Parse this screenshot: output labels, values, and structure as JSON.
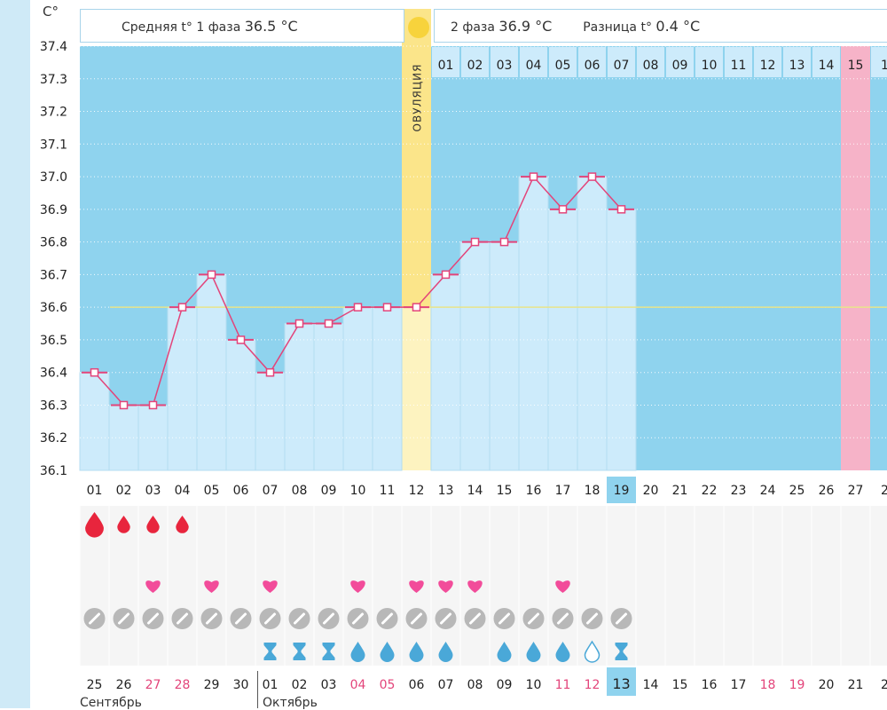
{
  "header": {
    "unit": "C°",
    "phase1_label": "Средняя t° 1 фаза",
    "phase1_value": "36.5 °C",
    "phase2_label": "2 фаза",
    "phase2_value": "36.9 °C",
    "diff_label": "Разница t°",
    "diff_value": "0.4 °C",
    "ovulation_label": "ОВУЛЯЦИЯ"
  },
  "colors": {
    "background_blue": "#8fd3ee",
    "bar_fill": "#cdebfb",
    "ovulation": "#fbe58a",
    "ovulation_light": "#fdf3c0",
    "period_pink": "#f6b3c8",
    "line": "#e3447a",
    "coverline": "#e8e48a",
    "today": "#8fd3ee",
    "red_text": "#e3447a"
  },
  "chart_data": {
    "type": "line",
    "title": "",
    "ylabel": "C°",
    "ylim": [
      36.1,
      37.4
    ],
    "y_ticks": [
      "37.4",
      "37.3",
      "37.2",
      "37.1",
      "37.0",
      "36.9",
      "36.8",
      "36.7",
      "36.6",
      "36.5",
      "36.4",
      "36.3",
      "36.2",
      "36.1"
    ],
    "coverline": 36.6,
    "ovulation_day": 12,
    "today_day": 19,
    "cycle_days": [
      "01",
      "02",
      "03",
      "04",
      "05",
      "06",
      "07",
      "08",
      "09",
      "10",
      "11",
      "12",
      "13",
      "14",
      "15",
      "16",
      "17",
      "18",
      "19",
      "20",
      "21",
      "22",
      "23",
      "24",
      "25",
      "26",
      "27",
      "2"
    ],
    "phase2_days": [
      "01",
      "02",
      "03",
      "04",
      "05",
      "06",
      "07",
      "08",
      "09",
      "10",
      "11",
      "12",
      "13",
      "14",
      "15",
      "1"
    ],
    "temperatures": [
      36.4,
      36.3,
      36.3,
      36.6,
      36.7,
      36.5,
      36.4,
      36.55,
      36.55,
      36.6,
      36.6,
      36.6,
      36.7,
      36.8,
      36.8,
      37.0,
      36.9,
      37.0,
      36.9
    ],
    "menstruation": [
      3,
      2,
      2,
      2,
      0,
      0,
      0,
      0,
      0,
      0,
      0,
      0,
      0,
      0,
      0,
      0,
      0,
      0,
      0
    ],
    "hearts": [
      0,
      0,
      1,
      0,
      1,
      0,
      1,
      0,
      0,
      1,
      0,
      1,
      1,
      1,
      0,
      0,
      1,
      0,
      0
    ],
    "tests": 19,
    "mucus": [
      "",
      "",
      "",
      "",
      "",
      "",
      "hourglass",
      "hourglass",
      "hourglass",
      "drop",
      "drop",
      "drop",
      "drop",
      "",
      "drop",
      "drop",
      "drop",
      "drop-empty",
      "hourglass"
    ],
    "calendar_dates": [
      {
        "d": "25",
        "red": false
      },
      {
        "d": "26",
        "red": false
      },
      {
        "d": "27",
        "red": true
      },
      {
        "d": "28",
        "red": true
      },
      {
        "d": "29",
        "red": false
      },
      {
        "d": "30",
        "red": false
      },
      {
        "d": "01",
        "red": false
      },
      {
        "d": "02",
        "red": false
      },
      {
        "d": "03",
        "red": false
      },
      {
        "d": "04",
        "red": true
      },
      {
        "d": "05",
        "red": true
      },
      {
        "d": "06",
        "red": false
      },
      {
        "d": "07",
        "red": false
      },
      {
        "d": "08",
        "red": false
      },
      {
        "d": "09",
        "red": false
      },
      {
        "d": "10",
        "red": false
      },
      {
        "d": "11",
        "red": true
      },
      {
        "d": "12",
        "red": true
      },
      {
        "d": "13",
        "red": false
      },
      {
        "d": "14",
        "red": false
      },
      {
        "d": "15",
        "red": false
      },
      {
        "d": "16",
        "red": false
      },
      {
        "d": "17",
        "red": false
      },
      {
        "d": "18",
        "red": true
      },
      {
        "d": "19",
        "red": true
      },
      {
        "d": "20",
        "red": false
      },
      {
        "d": "21",
        "red": false
      },
      {
        "d": "2",
        "red": false
      }
    ],
    "months": {
      "left": "Сентябрь",
      "right": "Октябрь"
    }
  }
}
